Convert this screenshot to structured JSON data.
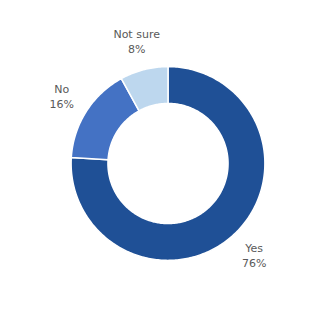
{
  "chart_data": {
    "type": "donut",
    "categories": [
      "Yes",
      "No",
      "Not sure"
    ],
    "values": [
      76,
      16,
      8
    ],
    "value_labels": [
      "76%",
      "16%",
      "8%"
    ],
    "colors": [
      "#1F5096",
      "#4472C4",
      "#BDD7EE"
    ],
    "data_labels": true
  }
}
